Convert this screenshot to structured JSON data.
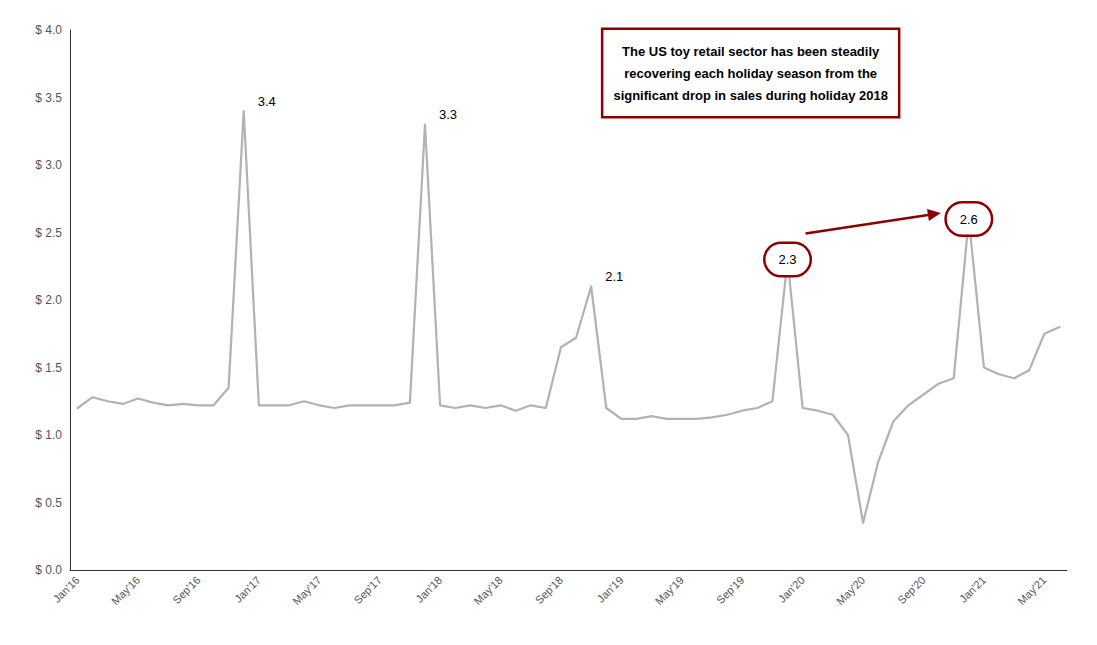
{
  "chart_data": {
    "type": "line",
    "categories": [
      "Jan'16",
      null,
      null,
      null,
      "May'16",
      null,
      null,
      null,
      "Sep'16",
      null,
      null,
      null,
      "Jan'17",
      null,
      null,
      null,
      "May'17",
      null,
      null,
      null,
      "Sep'17",
      null,
      null,
      null,
      "Jan'18",
      null,
      null,
      null,
      "May'18",
      null,
      null,
      null,
      "Sep'18",
      null,
      null,
      null,
      "Jan'19",
      null,
      null,
      null,
      "May'19",
      null,
      null,
      null,
      "Sep'19",
      null,
      null,
      null,
      "Jan'20",
      null,
      null,
      null,
      "May'20",
      null,
      null,
      null,
      "Sep'20",
      null,
      null,
      null,
      "Jan'21",
      null,
      null,
      null,
      "May'21",
      null
    ],
    "values": [
      1.2,
      1.28,
      1.25,
      1.23,
      1.27,
      1.24,
      1.22,
      1.23,
      1.22,
      1.22,
      1.35,
      3.4,
      1.22,
      1.22,
      1.22,
      1.25,
      1.22,
      1.2,
      1.22,
      1.22,
      1.22,
      1.22,
      1.24,
      3.3,
      1.22,
      1.2,
      1.22,
      1.2,
      1.22,
      1.18,
      1.22,
      1.2,
      1.65,
      1.72,
      2.1,
      1.2,
      1.12,
      1.12,
      1.14,
      1.12,
      1.12,
      1.12,
      1.13,
      1.15,
      1.18,
      1.2,
      1.25,
      2.3,
      1.2,
      1.18,
      1.15,
      1.0,
      0.35,
      0.8,
      1.1,
      1.22,
      1.3,
      1.38,
      1.42,
      2.6,
      1.5,
      1.45,
      1.42,
      1.48,
      1.75,
      1.8
    ],
    "color": "#b2b2b2",
    "ylim": [
      0,
      4.0
    ],
    "yticks": [
      {
        "value": 0.0,
        "label": "$ 0.0"
      },
      {
        "value": 0.5,
        "label": "$ 0.5"
      },
      {
        "value": 1.0,
        "label": "$ 1.0"
      },
      {
        "value": 1.5,
        "label": "$ 1.5"
      },
      {
        "value": 2.0,
        "label": "$ 2.0"
      },
      {
        "value": 2.5,
        "label": "$ 2.5"
      },
      {
        "value": 3.0,
        "label": "$ 3.0"
      },
      {
        "value": 3.5,
        "label": "$ 3.5"
      },
      {
        "value": 4.0,
        "label": "$ 4.0"
      }
    ],
    "grid": false,
    "annotations": [
      {
        "text": "3.4",
        "index": 11,
        "value": 3.4
      },
      {
        "text": "3.3",
        "index": 23,
        "value": 3.3
      },
      {
        "text": "2.1",
        "index": 34,
        "value": 2.1
      }
    ],
    "highlights": [
      {
        "text": "2.3",
        "index": 47,
        "value": 2.3,
        "color": "#8B0000"
      },
      {
        "text": "2.6",
        "index": 59,
        "value": 2.6,
        "color": "#8B0000"
      }
    ],
    "note": "The US toy retail sector has been steadily\nrecovering each holiday season from the\nsignificant drop in sales during holiday 2018"
  }
}
